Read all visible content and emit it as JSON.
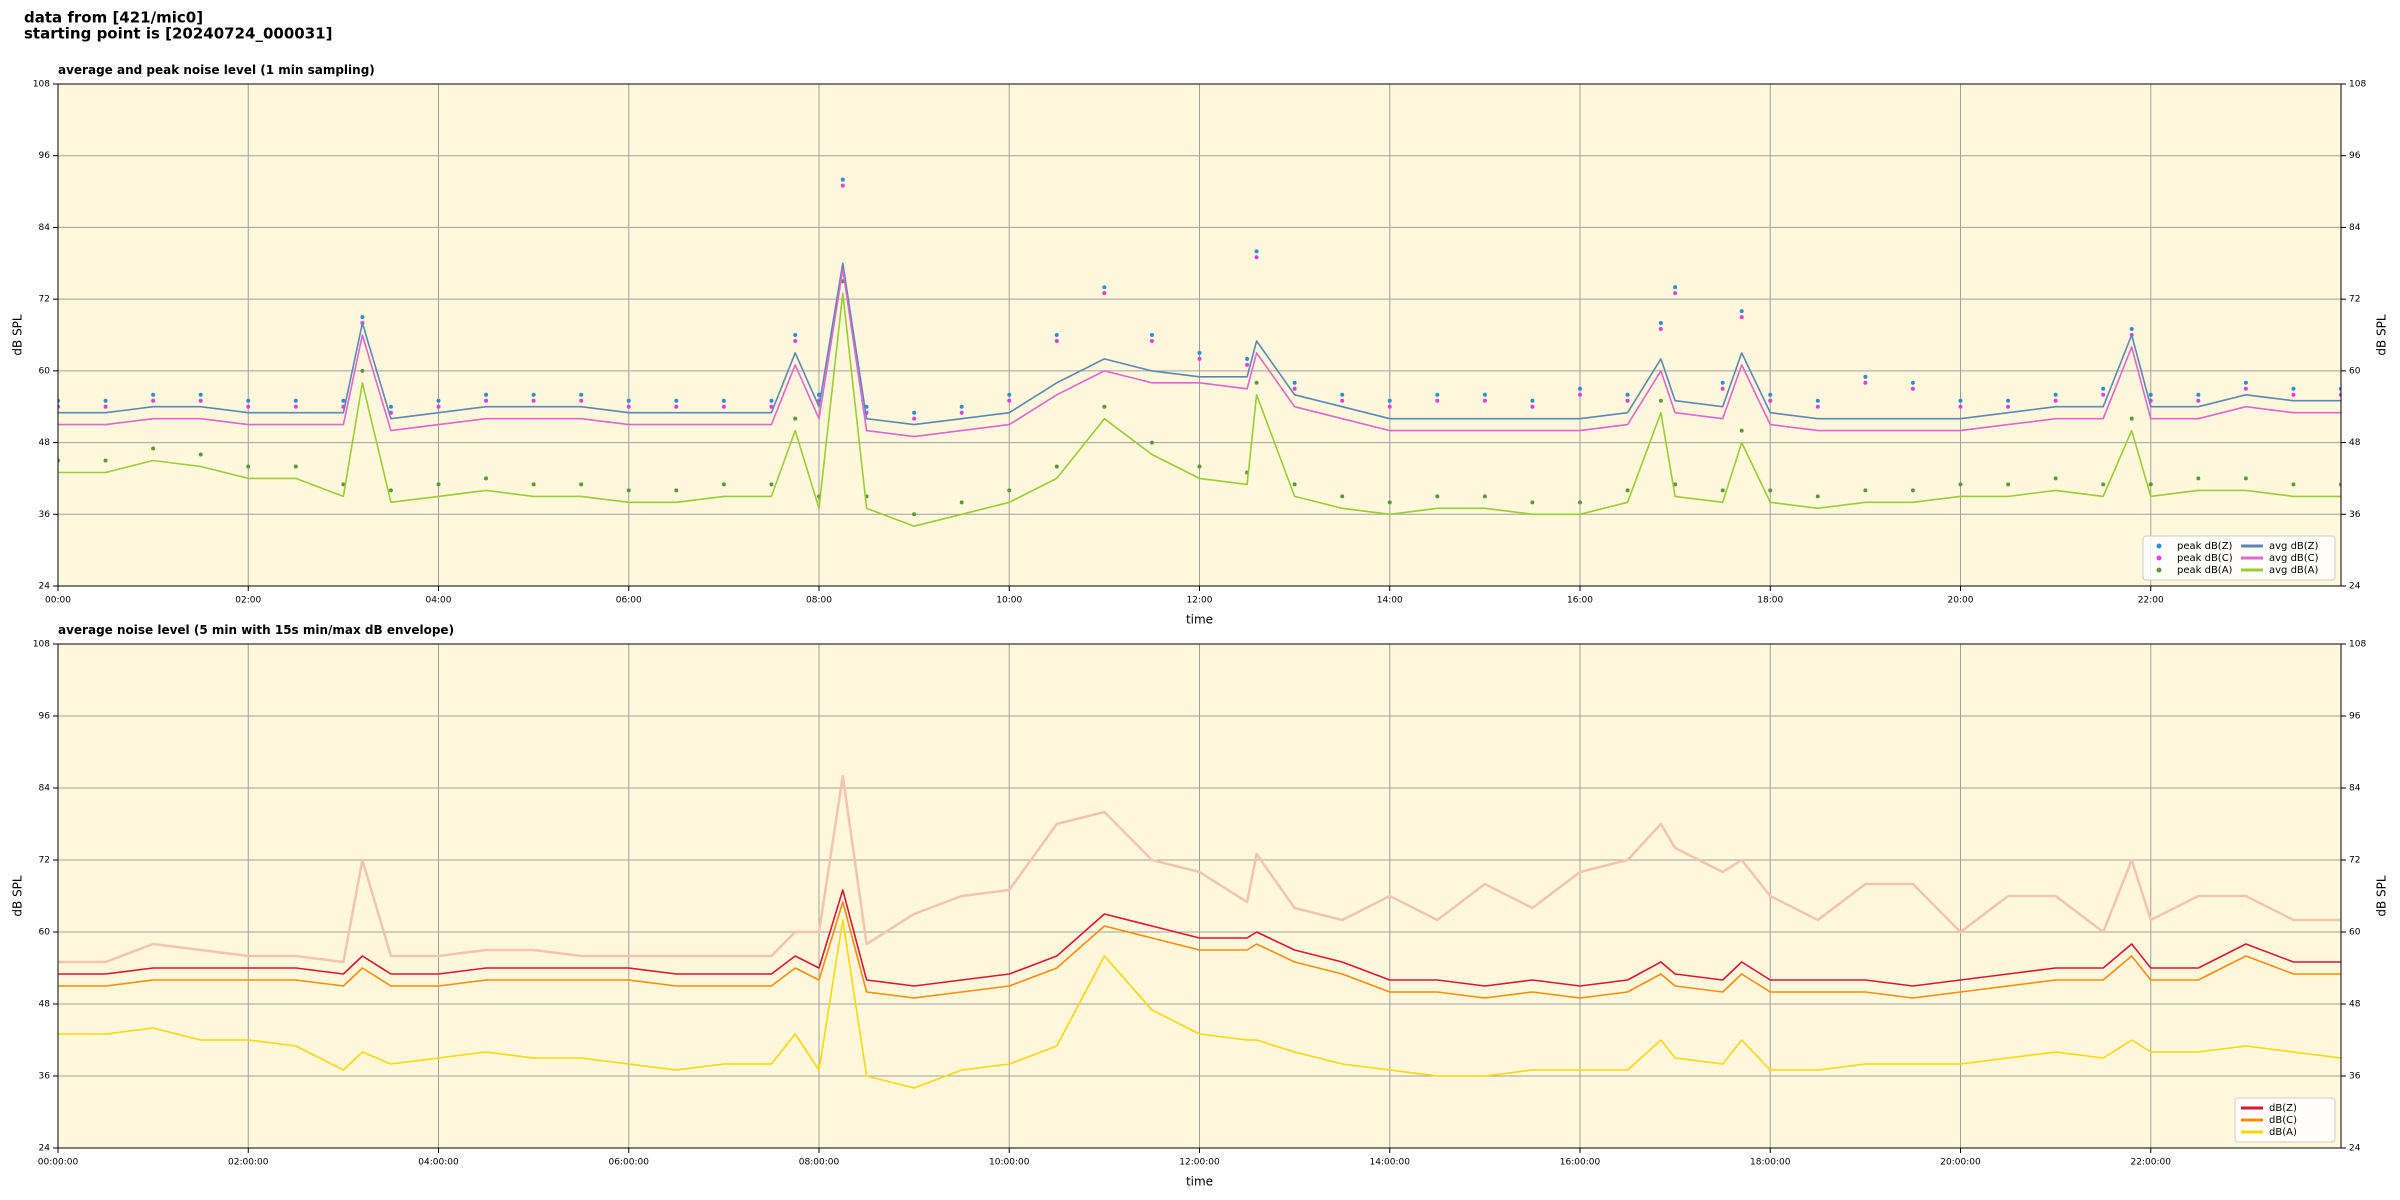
{
  "header": [
    "data from [421/mic0]",
    "starting point is [20240724_000031]"
  ],
  "chart_data": [
    {
      "type": "line",
      "title": "average and peak noise level (1 min sampling)",
      "xlabel": "time",
      "ylabel": "dB SPL",
      "background": "#fff8dc",
      "grid": true,
      "legend": "lower right",
      "legend_ncol": 2,
      "xlim": [
        0,
        24
      ],
      "ylim": [
        24,
        108
      ],
      "yticks": [
        24,
        36,
        48,
        60,
        72,
        84,
        96,
        108
      ],
      "xticks": [
        {
          "value": 0,
          "label": "00:00"
        },
        {
          "value": 2,
          "label": "02:00"
        },
        {
          "value": 4,
          "label": "04:00"
        },
        {
          "value": 6,
          "label": "06:00"
        },
        {
          "value": 8,
          "label": "08:00"
        },
        {
          "value": 10,
          "label": "10:00"
        },
        {
          "value": 12,
          "label": "12:00"
        },
        {
          "value": 14,
          "label": "14:00"
        },
        {
          "value": 16,
          "label": "16:00"
        },
        {
          "value": 18,
          "label": "18:00"
        },
        {
          "value": 20,
          "label": "20:00"
        },
        {
          "value": 22,
          "label": "22:00"
        }
      ],
      "x": [
        0,
        0.5,
        1,
        1.5,
        2,
        2.5,
        3,
        3.2,
        3.5,
        4,
        4.5,
        5,
        5.5,
        6,
        6.5,
        7,
        7.5,
        7.75,
        8,
        8.25,
        8.5,
        9,
        9.5,
        10,
        10.5,
        11,
        11.5,
        12,
        12.5,
        12.6,
        13,
        13.5,
        14,
        14.5,
        15,
        15.5,
        16,
        16.5,
        16.85,
        17,
        17.5,
        17.7,
        18,
        18.5,
        19,
        19.5,
        20,
        20.5,
        21,
        21.5,
        21.8,
        22,
        22.5,
        23,
        23.5,
        24
      ],
      "series": [
        {
          "name": "peak dB(Z)",
          "type": "scatter",
          "color": "#2a8fd8",
          "values": [
            55,
            55,
            56,
            56,
            55,
            55,
            55,
            69,
            54,
            55,
            56,
            56,
            56,
            55,
            55,
            55,
            55,
            66,
            56,
            92,
            54,
            53,
            54,
            56,
            66,
            74,
            66,
            63,
            62,
            80,
            58,
            56,
            55,
            56,
            56,
            55,
            57,
            56,
            68,
            74,
            58,
            70,
            56,
            55,
            59,
            58,
            55,
            55,
            56,
            57,
            67,
            56,
            56,
            58,
            57,
            57
          ]
        },
        {
          "name": "peak dB(C)",
          "type": "scatter",
          "color": "#e040e0",
          "values": [
            54,
            54,
            55,
            55,
            54,
            54,
            54,
            68,
            53,
            54,
            55,
            55,
            55,
            54,
            54,
            54,
            54,
            65,
            55,
            91,
            53,
            52,
            53,
            55,
            65,
            73,
            65,
            62,
            61,
            79,
            57,
            55,
            54,
            55,
            55,
            54,
            56,
            55,
            67,
            73,
            57,
            69,
            55,
            54,
            58,
            57,
            54,
            54,
            55,
            56,
            66,
            55,
            55,
            57,
            56,
            56
          ]
        },
        {
          "name": "peak dB(A)",
          "type": "scatter",
          "color": "#5a9a3a",
          "values": [
            45,
            45,
            47,
            46,
            44,
            44,
            41,
            60,
            40,
            41,
            42,
            41,
            41,
            40,
            40,
            41,
            41,
            52,
            39,
            75,
            39,
            36,
            38,
            40,
            44,
            54,
            48,
            44,
            43,
            58,
            41,
            39,
            38,
            39,
            39,
            38,
            38,
            40,
            55,
            41,
            40,
            50,
            40,
            39,
            40,
            40,
            41,
            41,
            42,
            41,
            52,
            41,
            42,
            42,
            41,
            41
          ]
        },
        {
          "name": "avg dB(Z)",
          "type": "line",
          "color": "#5b88b5",
          "values": [
            53,
            53,
            54,
            54,
            53,
            53,
            53,
            68,
            52,
            53,
            54,
            54,
            54,
            53,
            53,
            53,
            53,
            63,
            54,
            78,
            52,
            51,
            52,
            53,
            58,
            62,
            60,
            59,
            59,
            65,
            56,
            54,
            52,
            52,
            52,
            52,
            52,
            53,
            62,
            55,
            54,
            63,
            53,
            52,
            52,
            52,
            52,
            53,
            54,
            54,
            66,
            54,
            54,
            56,
            55,
            55
          ]
        },
        {
          "name": "avg dB(C)",
          "type": "line",
          "color": "#e066d0",
          "values": [
            51,
            51,
            52,
            52,
            51,
            51,
            51,
            66,
            50,
            51,
            52,
            52,
            52,
            51,
            51,
            51,
            51,
            61,
            52,
            77,
            50,
            49,
            50,
            51,
            56,
            60,
            58,
            58,
            57,
            63,
            54,
            52,
            50,
            50,
            50,
            50,
            50,
            51,
            60,
            53,
            52,
            61,
            51,
            50,
            50,
            50,
            50,
            51,
            52,
            52,
            64,
            52,
            52,
            54,
            53,
            53
          ]
        },
        {
          "name": "avg dB(A)",
          "type": "line",
          "color": "#9acd32",
          "values": [
            43,
            43,
            45,
            44,
            42,
            42,
            39,
            58,
            38,
            39,
            40,
            39,
            39,
            38,
            38,
            39,
            39,
            50,
            37,
            73,
            37,
            34,
            36,
            38,
            42,
            52,
            46,
            42,
            41,
            56,
            39,
            37,
            36,
            37,
            37,
            36,
            36,
            38,
            53,
            39,
            38,
            48,
            38,
            37,
            38,
            38,
            39,
            39,
            40,
            39,
            50,
            39,
            40,
            40,
            39,
            39
          ]
        }
      ]
    },
    {
      "type": "line",
      "title": "average noise level (5 min with 15s min/max dB envelope)",
      "xlabel": "time",
      "ylabel": "dB SPL",
      "background": "#fff8dc",
      "grid": true,
      "legend": "lower right",
      "legend_ncol": 1,
      "xlim": [
        0,
        24
      ],
      "ylim": [
        24,
        108
      ],
      "yticks": [
        24,
        36,
        48,
        60,
        72,
        84,
        96,
        108
      ],
      "xticks": [
        {
          "value": 0,
          "label": "00:00:00"
        },
        {
          "value": 2,
          "label": "02:00:00"
        },
        {
          "value": 4,
          "label": "04:00:00"
        },
        {
          "value": 6,
          "label": "06:00:00"
        },
        {
          "value": 8,
          "label": "08:00:00"
        },
        {
          "value": 10,
          "label": "10:00:00"
        },
        {
          "value": 12,
          "label": "12:00:00"
        },
        {
          "value": 14,
          "label": "14:00:00"
        },
        {
          "value": 16,
          "label": "16:00:00"
        },
        {
          "value": 18,
          "label": "18:00:00"
        },
        {
          "value": 20,
          "label": "20:00:00"
        },
        {
          "value": 22,
          "label": "22:00:00"
        }
      ],
      "x": [
        0,
        0.5,
        1,
        1.5,
        2,
        2.5,
        3,
        3.2,
        3.5,
        4,
        4.5,
        5,
        5.5,
        6,
        6.5,
        7,
        7.5,
        7.75,
        8,
        8.25,
        8.5,
        9,
        9.5,
        10,
        10.5,
        11,
        11.5,
        12,
        12.5,
        12.6,
        13,
        13.5,
        14,
        14.5,
        15,
        15.5,
        16,
        16.5,
        16.85,
        17,
        17.5,
        17.7,
        18,
        18.5,
        19,
        19.5,
        20,
        20.5,
        21,
        21.5,
        21.8,
        22,
        22.5,
        23,
        23.5,
        24
      ],
      "series": [
        {
          "type": "line",
          "color": "#f5c4b0",
          "values": [
            55,
            55,
            58,
            57,
            56,
            56,
            55,
            72,
            56,
            56,
            57,
            57,
            56,
            56,
            56,
            56,
            56,
            60,
            60,
            86,
            58,
            63,
            66,
            67,
            78,
            80,
            72,
            70,
            65,
            73,
            64,
            62,
            66,
            62,
            68,
            64,
            70,
            72,
            78,
            74,
            70,
            72,
            66,
            62,
            68,
            68,
            60,
            66,
            66,
            60,
            72,
            62,
            66,
            66,
            62,
            62
          ]
        },
        {
          "name": "dB(Z)",
          "type": "line",
          "color": "#dc143c",
          "values": [
            53,
            53,
            54,
            54,
            54,
            54,
            53,
            56,
            53,
            53,
            54,
            54,
            54,
            54,
            53,
            53,
            53,
            56,
            54,
            67,
            52,
            51,
            52,
            53,
            56,
            63,
            61,
            59,
            59,
            60,
            57,
            55,
            52,
            52,
            51,
            52,
            51,
            52,
            55,
            53,
            52,
            55,
            52,
            52,
            52,
            51,
            52,
            53,
            54,
            54,
            58,
            54,
            54,
            58,
            55,
            55
          ]
        },
        {
          "name": "dB(C)",
          "type": "line",
          "color": "#ff8c00",
          "values": [
            51,
            51,
            52,
            52,
            52,
            52,
            51,
            54,
            51,
            51,
            52,
            52,
            52,
            52,
            51,
            51,
            51,
            54,
            52,
            65,
            50,
            49,
            50,
            51,
            54,
            61,
            59,
            57,
            57,
            58,
            55,
            53,
            50,
            50,
            49,
            50,
            49,
            50,
            53,
            51,
            50,
            53,
            50,
            50,
            50,
            49,
            50,
            51,
            52,
            52,
            56,
            52,
            52,
            56,
            53,
            53
          ]
        },
        {
          "name": "dB(A)",
          "type": "line",
          "color": "#ffd700",
          "values": [
            43,
            43,
            44,
            42,
            42,
            41,
            37,
            40,
            38,
            39,
            40,
            39,
            39,
            38,
            37,
            38,
            38,
            43,
            37,
            62,
            36,
            34,
            37,
            38,
            41,
            56,
            47,
            43,
            42,
            42,
            40,
            38,
            37,
            36,
            36,
            37,
            37,
            37,
            42,
            39,
            38,
            42,
            37,
            37,
            38,
            38,
            38,
            39,
            40,
            39,
            42,
            40,
            40,
            41,
            40,
            39
          ]
        }
      ]
    }
  ]
}
